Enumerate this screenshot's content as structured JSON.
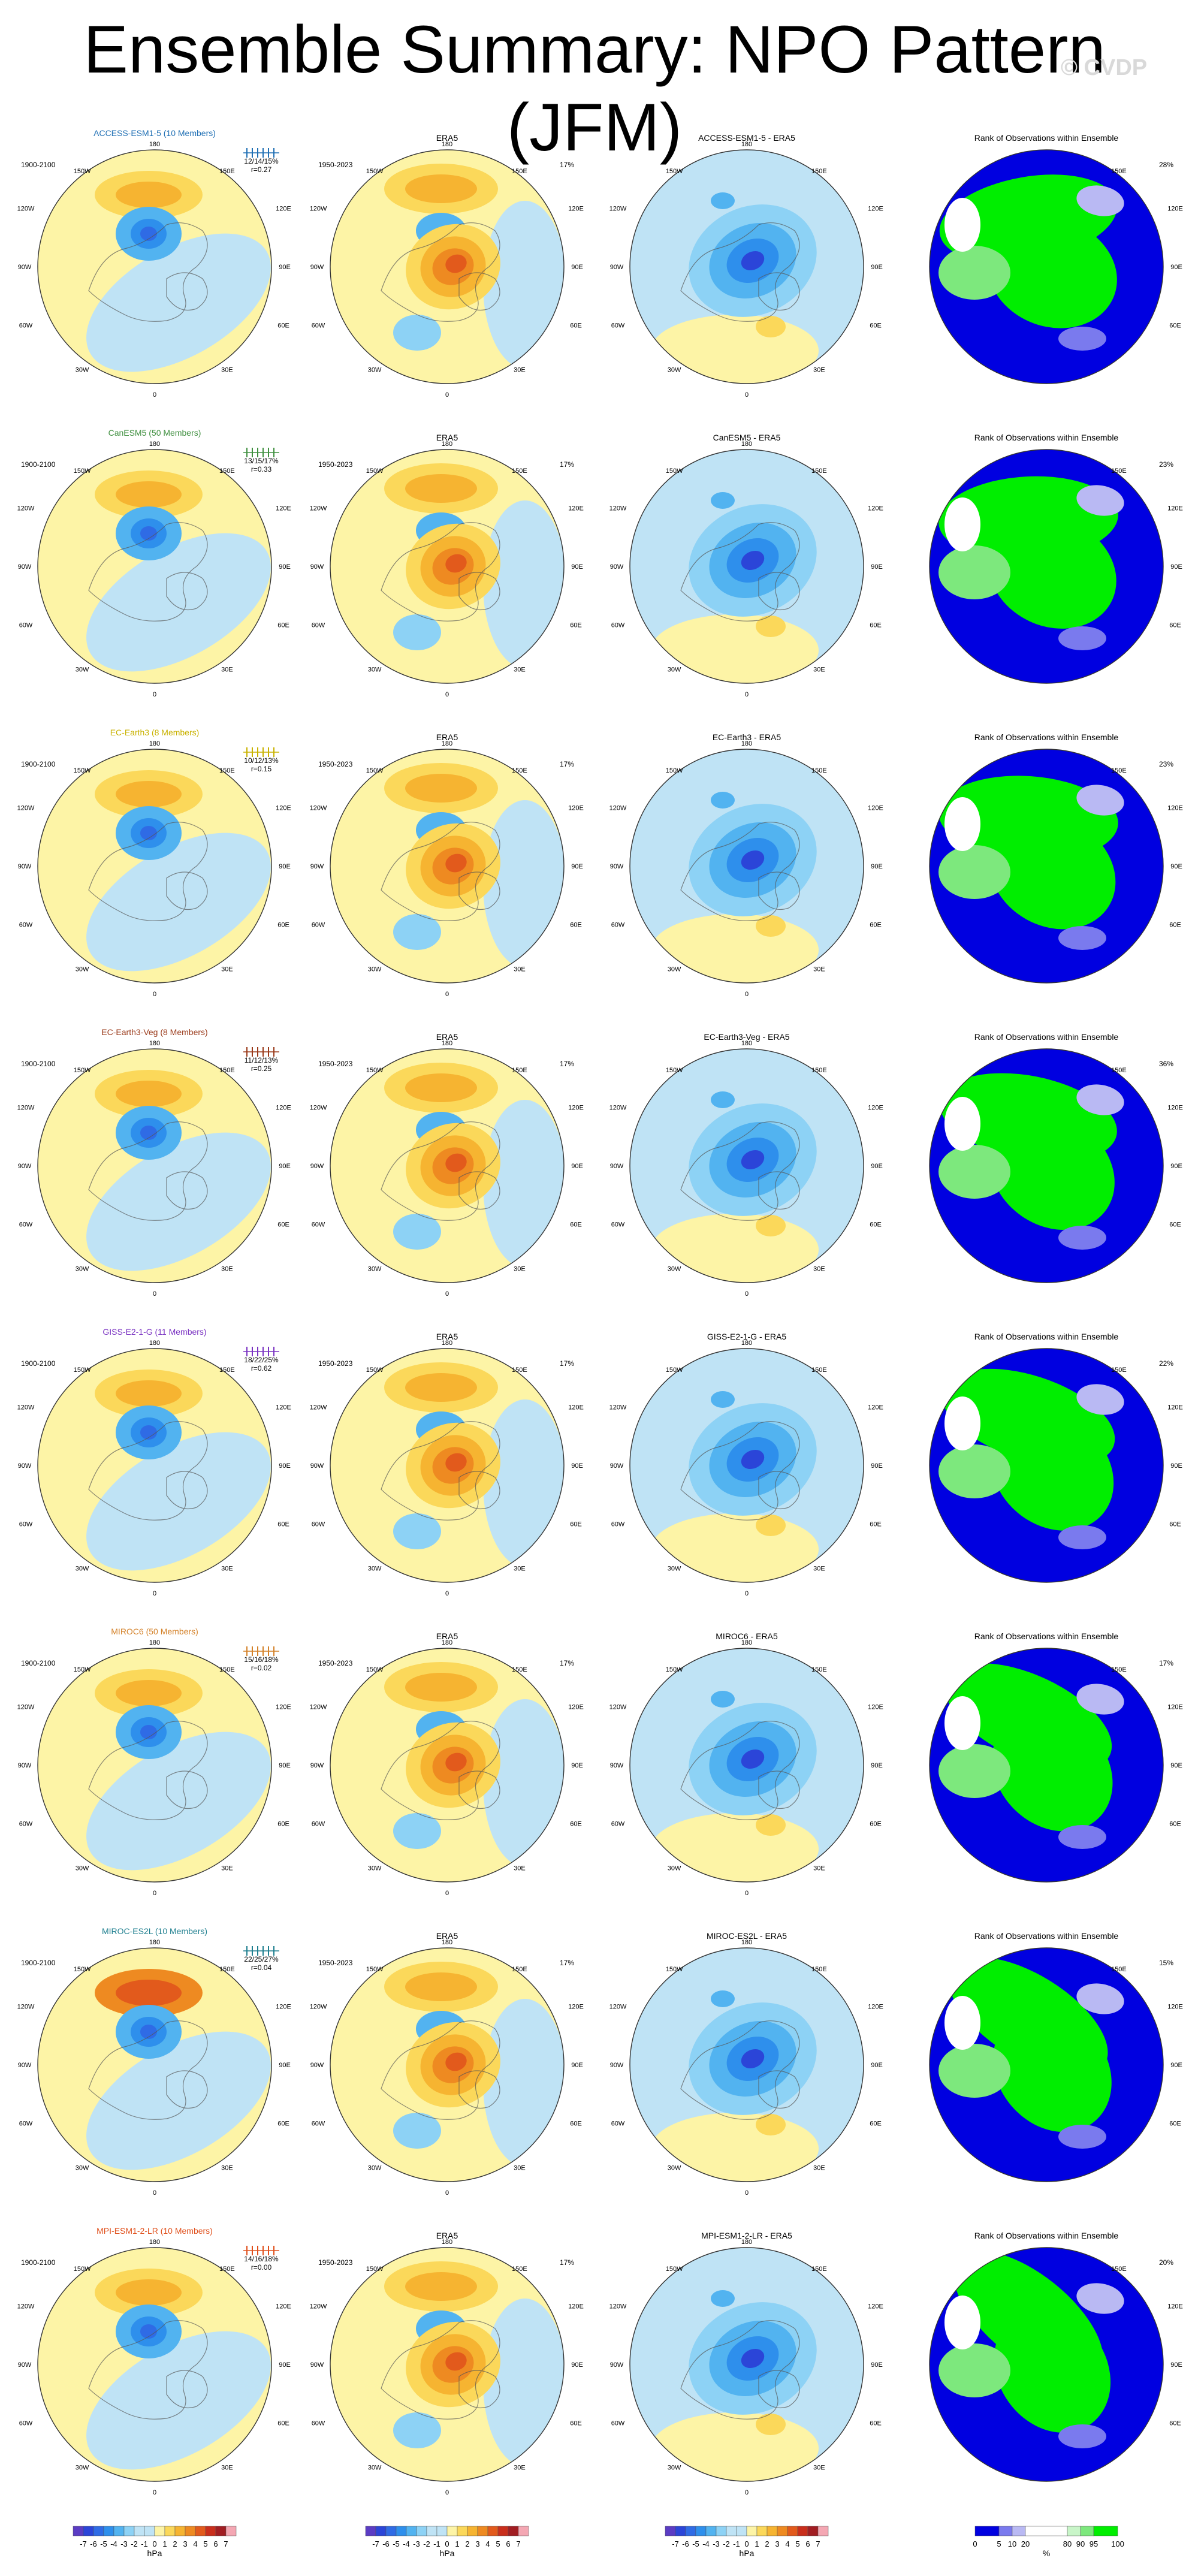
{
  "title": "Ensemble Summary: NPO Pattern (JFM)",
  "watermark": "© CVDP",
  "colors": {
    "cool1": "#5b3cc4",
    "cool2": "#2b45d8",
    "cool3": "#2f6be5",
    "cool4": "#2e8fec",
    "cool5": "#52b3f0",
    "cool6": "#8dd2f5",
    "cool7": "#bfe3f5",
    "warm1": "#fdf4a6",
    "warm2": "#fbd85a",
    "warm3": "#f6b431",
    "warm4": "#ee8a21",
    "warm5": "#e25a1c",
    "warm6": "#c92e1c",
    "warm7": "#a11d22",
    "warm8": "#f4a7b3",
    "rank_blue": "#0000e0",
    "rank_lav1": "#7a7aee",
    "rank_lav2": "#b9b9f3",
    "rank_white": "#ffffff",
    "rank_green1": "#c8f5c8",
    "rank_green2": "#7de87d",
    "rank_green3": "#00ee00"
  },
  "lon_labels": {
    "top": "180",
    "ul": "150W",
    "ur": "150E",
    "l1": "120W",
    "r1": "120E",
    "l2": "90W",
    "r2": "90E",
    "l3": "60W",
    "r3": "60E",
    "ll": "30W",
    "lr": "30E",
    "bottom": "0"
  },
  "era5": {
    "title": "ERA5",
    "years": "1950-2023",
    "pct": "17%"
  },
  "rank_title": "Rank of Observations within Ensemble",
  "rows": [
    {
      "model": "ACCESS-ESM1-5 (10 Members)",
      "years": "1900-2100",
      "stats": "12/14/15%",
      "r": "r=0.27",
      "diff": "ACCESS-ESM1-5 - ERA5",
      "rank_pct": "28%",
      "color": "#1f6fb4"
    },
    {
      "model": "CanESM5 (50 Members)",
      "years": "1900-2100",
      "stats": "13/15/17%",
      "r": "r=0.33",
      "diff": "CanESM5 - ERA5",
      "rank_pct": "23%",
      "color": "#3f8f3f"
    },
    {
      "model": "EC-Earth3 (8 Members)",
      "years": "1900-2100",
      "stats": "10/12/13%",
      "r": "r=0.15",
      "diff": "EC-Earth3 - ERA5",
      "rank_pct": "23%",
      "color": "#c9b200"
    },
    {
      "model": "EC-Earth3-Veg (8 Members)",
      "years": "1900-2100",
      "stats": "11/12/13%",
      "r": "r=0.25",
      "diff": "EC-Earth3-Veg - ERA5",
      "rank_pct": "36%",
      "color": "#9a3a1a"
    },
    {
      "model": "GISS-E2-1-G (11 Members)",
      "years": "1900-2100",
      "stats": "18/22/25%",
      "r": "r=0.62",
      "diff": "GISS-E2-1-G - ERA5",
      "rank_pct": "22%",
      "color": "#7a33c2"
    },
    {
      "model": "MIROC6 (50 Members)",
      "years": "1900-2100",
      "stats": "15/16/18%",
      "r": "r=0.02",
      "diff": "MIROC6 - ERA5",
      "rank_pct": "17%",
      "color": "#d4822a"
    },
    {
      "model": "MIROC-ES2L (10 Members)",
      "years": "1900-2100",
      "stats": "22/25/27%",
      "r": "r=0.04",
      "diff": "MIROC-ES2L - ERA5",
      "rank_pct": "15%",
      "color": "#1f7f8f"
    },
    {
      "model": "MPI-ESM1-2-LR (10 Members)",
      "years": "1900-2100",
      "stats": "14/16/18%",
      "r": "r=0.00",
      "diff": "MPI-ESM1-2-LR - ERA5",
      "rank_pct": "20%",
      "color": "#e0501c"
    }
  ],
  "colorbar": {
    "labels": [
      "-7",
      "-6",
      "-5",
      "-4",
      "-3",
      "-2",
      "-1",
      "0",
      "1",
      "2",
      "3",
      "4",
      "5",
      "6",
      "7"
    ],
    "unit": "hPa"
  },
  "rank_colorbar": {
    "labels": [
      "0",
      "5",
      "10",
      "20",
      "80",
      "90",
      "95",
      "100"
    ],
    "unit": "%"
  }
}
